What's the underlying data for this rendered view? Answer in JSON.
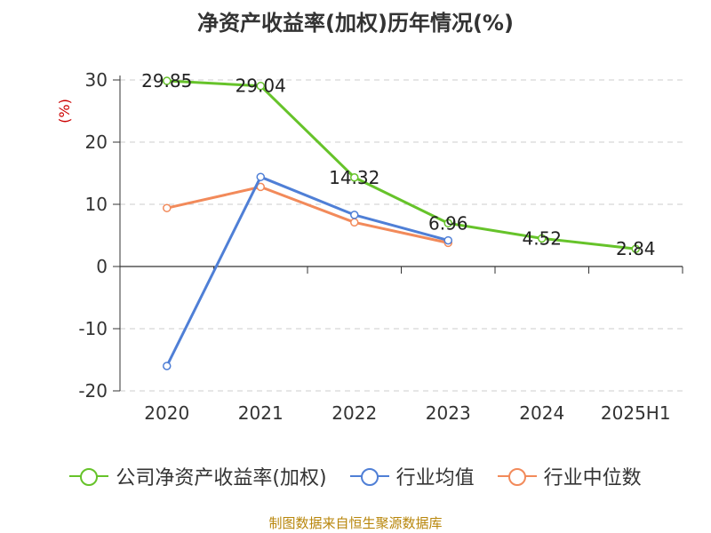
{
  "chart_data": {
    "type": "line",
    "title": "净资产收益率(加权)历年情况(%)",
    "ylabel": "(%)",
    "xlabel": "",
    "categories": [
      "2020",
      "2021",
      "2022",
      "2023",
      "2024",
      "2025H1"
    ],
    "ylim": [
      -20,
      30
    ],
    "yticks": [
      30,
      20,
      10,
      0,
      -10,
      -20
    ],
    "grid": true,
    "legend_position": "bottom",
    "series": [
      {
        "name": "公司净资产收益率(加权)",
        "color": "#66c32a",
        "values": [
          29.85,
          29.04,
          14.32,
          6.96,
          4.52,
          2.84
        ],
        "labels": [
          "29.85",
          "29.04",
          "14.32",
          "6.96",
          "4.52",
          "2.84"
        ]
      },
      {
        "name": "行业均值",
        "color": "#4f7fd6",
        "values": [
          -16.0,
          14.4,
          8.3,
          4.2,
          null,
          null
        ]
      },
      {
        "name": "行业中位数",
        "color": "#f28a5a",
        "values": [
          9.4,
          12.8,
          7.1,
          3.8,
          null,
          null
        ]
      }
    ]
  },
  "source": "制图数据来自恒生聚源数据库"
}
